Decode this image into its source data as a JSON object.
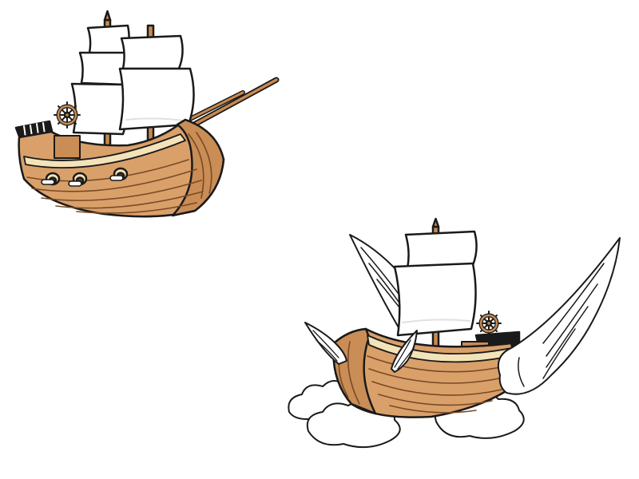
{
  "illustrations": [
    {
      "name": "sailing-ship",
      "masts": 2,
      "sails": 4,
      "cannon_ports": 3,
      "has_helm_wheel": true,
      "has_bowsprit": true
    },
    {
      "name": "flying-ship",
      "masts": 1,
      "sails": 2,
      "wings": 4,
      "clouds": 3,
      "has_helm_wheel": true
    }
  ],
  "colors": {
    "background": "#ffffff",
    "outline": "#1a1a1a",
    "hull": "#d9a06a",
    "hull_shade": "#c98d55",
    "plank_line": "#7a4a25",
    "trim": "#f3e3b8",
    "mast": "#c98a4f",
    "sail": "#ffffff",
    "sail_shade": "#e9e9e9",
    "wing": "#ffffff",
    "cloud": "#ffffff",
    "port_dark": "#5a3a22"
  }
}
